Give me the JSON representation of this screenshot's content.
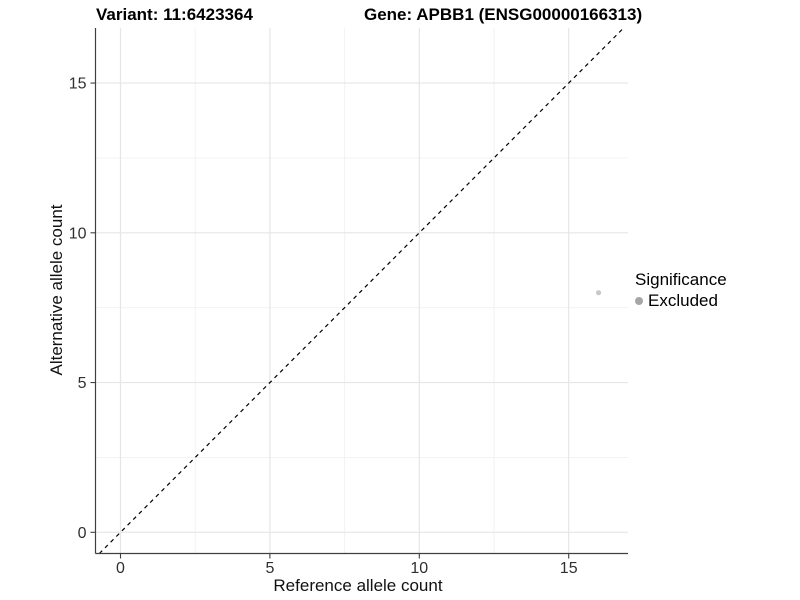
{
  "chart_data": {
    "type": "scatter",
    "title_left": "Variant: 11:6423364",
    "title_right": "Gene: APBB1 (ENSG00000166313)",
    "x_axis": {
      "label": "Reference allele count",
      "ticks": [
        0,
        5,
        10,
        15
      ],
      "range": [
        -0.85,
        17.0
      ]
    },
    "y_axis": {
      "label": "Alternative allele count",
      "ticks": [
        0,
        5,
        10,
        15
      ],
      "range": [
        -0.7,
        16.85
      ]
    },
    "grid": {
      "major": true,
      "minor": true
    },
    "reference_line": {
      "type": "identity y = x",
      "style": "dashed",
      "color": "#000000"
    },
    "series": [
      {
        "name": "Excluded",
        "color": "#c8c8c8",
        "points": [
          [
            16,
            8
          ]
        ]
      }
    ],
    "legend": {
      "title": "Significance",
      "position": "right",
      "entries": [
        {
          "label": "Excluded",
          "color": "#a6a6a6"
        }
      ]
    },
    "style": {
      "background": "#ffffff",
      "grid_major_color": "#e6e6e6",
      "grid_minor_color": "#f1f1f1",
      "axis_color": "#404040",
      "tick_label_color": "#303030"
    }
  }
}
